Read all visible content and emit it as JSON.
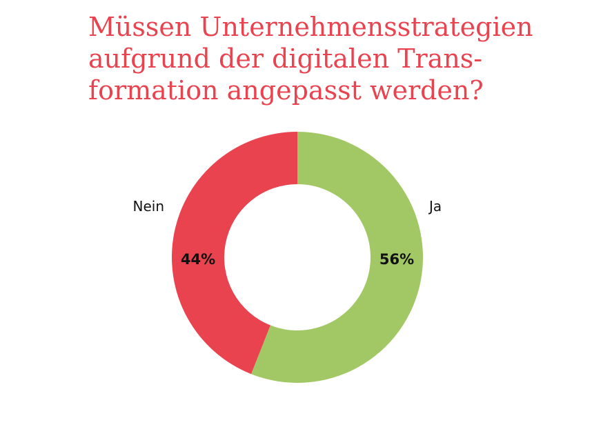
{
  "chart_data": {
    "type": "pie",
    "title_lines": [
      "Müssen Unternehmensstrategien",
      "aufgrund der digitalen Trans-",
      "formation angepasst werden?"
    ],
    "donut": true,
    "slices": [
      {
        "label": "Ja",
        "value": 56,
        "value_label": "56%",
        "color": "#a2c865"
      },
      {
        "label": "Nein",
        "value": 44,
        "value_label": "44%",
        "color": "#e8434f"
      }
    ],
    "start": "12 o'clock",
    "direction": "clockwise"
  },
  "colors": {
    "title": "#e8434f",
    "background": "#ffffff"
  }
}
